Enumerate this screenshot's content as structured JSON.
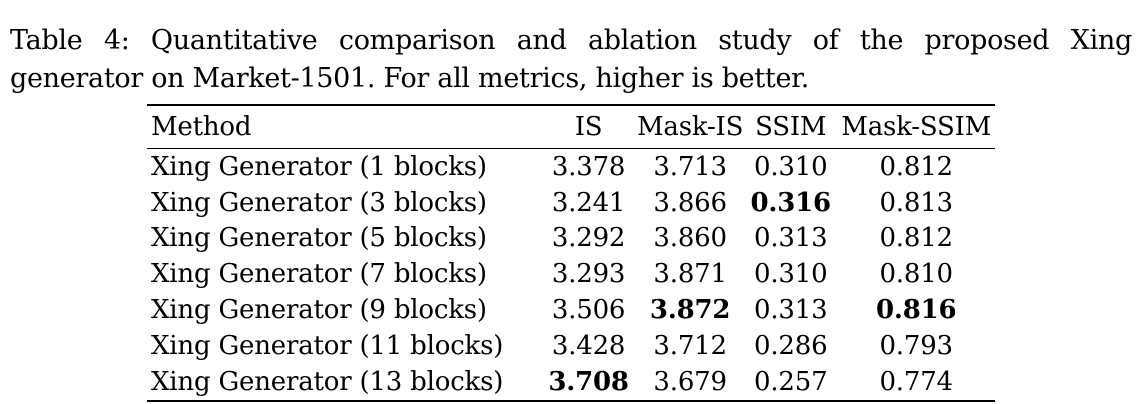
{
  "caption": {
    "label": "Table 4:",
    "text": "Quantitative comparison and ablation study of the proposed Xing generator on Market-1501. For all metrics, higher is better."
  },
  "table": {
    "headers": {
      "method": "Method",
      "is": "IS",
      "mask_is": "Mask-IS",
      "ssim": "SSIM",
      "mask_ssim": "Mask-SSIM"
    },
    "rows": [
      {
        "method": "Xing Generator (1 blocks)",
        "is": "3.378",
        "mask_is": "3.713",
        "ssim": "0.310",
        "mask_ssim": "0.812"
      },
      {
        "method": "Xing Generator (3 blocks)",
        "is": "3.241",
        "mask_is": "3.866",
        "ssim": "0.316",
        "mask_ssim": "0.813"
      },
      {
        "method": "Xing Generator (5 blocks)",
        "is": "3.292",
        "mask_is": "3.860",
        "ssim": "0.313",
        "mask_ssim": "0.812"
      },
      {
        "method": "Xing Generator (7 blocks)",
        "is": "3.293",
        "mask_is": "3.871",
        "ssim": "0.310",
        "mask_ssim": "0.810"
      },
      {
        "method": "Xing Generator (9 blocks)",
        "is": "3.506",
        "mask_is": "3.872",
        "ssim": "0.313",
        "mask_ssim": "0.816"
      },
      {
        "method": "Xing Generator (11 blocks)",
        "is": "3.428",
        "mask_is": "3.712",
        "ssim": "0.286",
        "mask_ssim": "0.793"
      },
      {
        "method": "Xing Generator (13 blocks)",
        "is": "3.708",
        "mask_is": "3.679",
        "ssim": "0.257",
        "mask_ssim": "0.774"
      }
    ],
    "bold_cells": {
      "is": 6,
      "mask_is": 4,
      "ssim": 1,
      "mask_ssim": 4
    }
  }
}
